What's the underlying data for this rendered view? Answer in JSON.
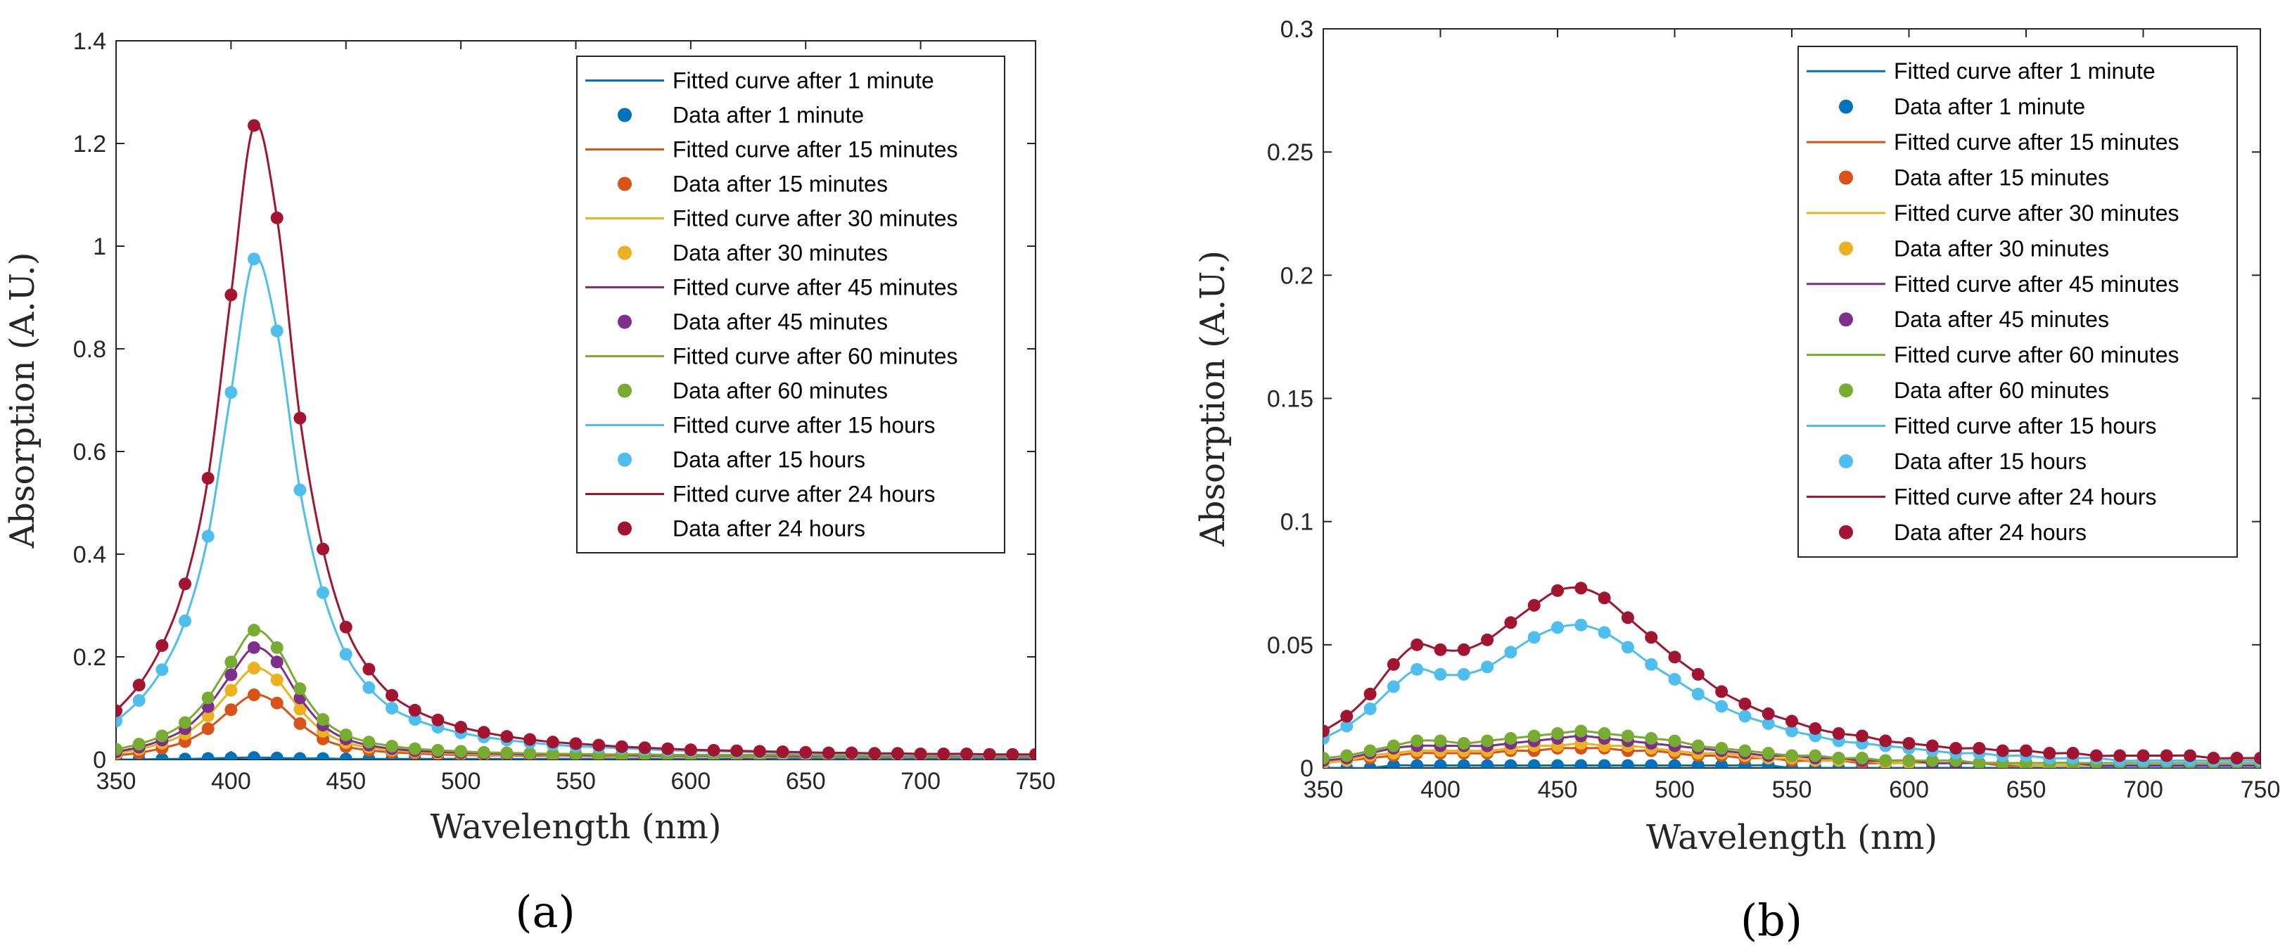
{
  "panels": [
    {
      "label": "(a)",
      "chart_data": {
        "type": "line",
        "xlabel": "Wavelength (nm)",
        "ylabel": "Absorption (A.U.)",
        "xlim": [
          350,
          750
        ],
        "ylim": [
          0,
          1.4
        ],
        "xticks": [
          350,
          400,
          450,
          500,
          550,
          600,
          650,
          700,
          750
        ],
        "yticks": [
          0,
          0.2,
          0.4,
          0.6,
          0.8,
          1,
          1.2,
          1.4
        ],
        "ytick_labels": [
          "0",
          "0.2",
          "0.4",
          "0.6",
          "0.8",
          "1",
          "1.2",
          "1.4"
        ],
        "legend_position": "top-right",
        "x": [
          350,
          360,
          370,
          380,
          390,
          400,
          410,
          420,
          430,
          440,
          450,
          460,
          470,
          480,
          490,
          500,
          510,
          520,
          530,
          540,
          550,
          560,
          570,
          580,
          590,
          600,
          610,
          620,
          630,
          640,
          650,
          660,
          670,
          680,
          690,
          700,
          710,
          720,
          730,
          740,
          750
        ],
        "series": [
          {
            "name": "after 1 minute",
            "color": "#0072BD",
            "values": [
              0.0,
              0.0,
              0.001,
              0.001,
              0.002,
              0.003,
              0.004,
              0.003,
              0.002,
              0.002,
              0.001,
              0.001,
              0.001,
              0.001,
              0.001,
              0.001,
              0.001,
              0.001,
              0.001,
              0.001,
              0.001,
              0.001,
              0.001,
              0.001,
              0.001,
              0.001,
              0.001,
              0.001,
              0.001,
              0.001,
              0.001,
              0.001,
              0.001,
              0.001,
              0.001,
              0.001,
              0.001,
              0.001,
              0.001,
              0.001,
              0.001
            ]
          },
          {
            "name": "after 15 minutes",
            "color": "#D95319",
            "values": [
              0.008,
              0.013,
              0.022,
              0.035,
              0.06,
              0.097,
              0.126,
              0.11,
              0.07,
              0.04,
              0.025,
              0.018,
              0.014,
              0.012,
              0.01,
              0.009,
              0.008,
              0.008,
              0.007,
              0.007,
              0.007,
              0.006,
              0.006,
              0.006,
              0.006,
              0.006,
              0.006,
              0.005,
              0.005,
              0.005,
              0.005,
              0.005,
              0.005,
              0.005,
              0.005,
              0.005,
              0.005,
              0.005,
              0.005,
              0.005,
              0.005
            ]
          },
          {
            "name": "after 30 minutes",
            "color": "#EDB120",
            "values": [
              0.012,
              0.02,
              0.032,
              0.05,
              0.085,
              0.135,
              0.178,
              0.155,
              0.098,
              0.055,
              0.033,
              0.024,
              0.018,
              0.015,
              0.013,
              0.011,
              0.01,
              0.009,
              0.009,
              0.008,
              0.008,
              0.008,
              0.007,
              0.007,
              0.007,
              0.007,
              0.007,
              0.006,
              0.006,
              0.006,
              0.006,
              0.006,
              0.006,
              0.006,
              0.006,
              0.006,
              0.006,
              0.006,
              0.006,
              0.006,
              0.006
            ]
          },
          {
            "name": "after 45 minutes",
            "color": "#7E2F8E",
            "values": [
              0.015,
              0.024,
              0.038,
              0.06,
              0.103,
              0.165,
              0.218,
              0.19,
              0.12,
              0.067,
              0.04,
              0.028,
              0.021,
              0.017,
              0.015,
              0.013,
              0.012,
              0.011,
              0.01,
              0.01,
              0.009,
              0.009,
              0.009,
              0.008,
              0.008,
              0.008,
              0.008,
              0.008,
              0.008,
              0.007,
              0.007,
              0.007,
              0.007,
              0.007,
              0.007,
              0.007,
              0.007,
              0.007,
              0.007,
              0.007,
              0.007
            ]
          },
          {
            "name": "after 60 minutes",
            "color": "#77AC30",
            "values": [
              0.02,
              0.03,
              0.046,
              0.072,
              0.12,
              0.19,
              0.252,
              0.218,
              0.138,
              0.078,
              0.048,
              0.034,
              0.026,
              0.021,
              0.018,
              0.016,
              0.014,
              0.013,
              0.012,
              0.011,
              0.011,
              0.01,
              0.01,
              0.01,
              0.009,
              0.009,
              0.009,
              0.009,
              0.009,
              0.009,
              0.009,
              0.008,
              0.008,
              0.008,
              0.008,
              0.008,
              0.008,
              0.008,
              0.008,
              0.008,
              0.008
            ]
          },
          {
            "name": "after 15 hours",
            "color": "#4DBEEE",
            "values": [
              0.075,
              0.115,
              0.175,
              0.27,
              0.435,
              0.715,
              0.975,
              0.835,
              0.525,
              0.325,
              0.205,
              0.14,
              0.1,
              0.078,
              0.063,
              0.052,
              0.044,
              0.038,
              0.033,
              0.029,
              0.026,
              0.024,
              0.022,
              0.02,
              0.018,
              0.017,
              0.016,
              0.015,
              0.014,
              0.013,
              0.012,
              0.012,
              0.011,
              0.011,
              0.01,
              0.01,
              0.01,
              0.009,
              0.009,
              0.009,
              0.009
            ]
          },
          {
            "name": "after 24 hours",
            "color": "#A2142F",
            "values": [
              0.095,
              0.145,
              0.222,
              0.342,
              0.548,
              0.905,
              1.235,
              1.055,
              0.665,
              0.41,
              0.258,
              0.176,
              0.125,
              0.096,
              0.077,
              0.063,
              0.053,
              0.045,
              0.039,
              0.034,
              0.031,
              0.028,
              0.025,
              0.023,
              0.021,
              0.019,
              0.018,
              0.017,
              0.016,
              0.015,
              0.014,
              0.013,
              0.013,
              0.012,
              0.012,
              0.011,
              0.011,
              0.011,
              0.01,
              0.01,
              0.01
            ]
          }
        ]
      }
    },
    {
      "label": "(b)",
      "chart_data": {
        "type": "line",
        "xlabel": "Wavelength (nm)",
        "ylabel": "Absorption (A.U.)",
        "xlim": [
          350,
          750
        ],
        "ylim": [
          0,
          0.3
        ],
        "xticks": [
          350,
          400,
          450,
          500,
          550,
          600,
          650,
          700,
          750
        ],
        "yticks": [
          0,
          0.05,
          0.1,
          0.15,
          0.2,
          0.25,
          0.3
        ],
        "ytick_labels": [
          "0",
          "0.05",
          "0.1",
          "0.15",
          "0.2",
          "0.25",
          "0.3"
        ],
        "legend_position": "top-right",
        "x": [
          350,
          360,
          370,
          380,
          390,
          400,
          410,
          420,
          430,
          440,
          450,
          460,
          470,
          480,
          490,
          500,
          510,
          520,
          530,
          540,
          550,
          560,
          570,
          580,
          590,
          600,
          610,
          620,
          630,
          640,
          650,
          660,
          670,
          680,
          690,
          700,
          710,
          720,
          730,
          740,
          750
        ],
        "series": [
          {
            "name": "after 1 minute",
            "color": "#0072BD",
            "values": [
              0.0,
              0.0,
              0.0,
              0.001,
              0.001,
              0.001,
              0.001,
              0.001,
              0.001,
              0.001,
              0.001,
              0.001,
              0.001,
              0.001,
              0.001,
              0.001,
              0.001,
              0.001,
              0.001,
              0.001,
              0.0,
              0.0,
              0.0,
              0.0,
              0.0,
              0.0,
              0.0,
              0.0,
              0.0,
              0.0,
              0.0,
              0.0,
              0.0,
              0.0,
              0.0,
              0.0,
              0.0,
              0.0,
              0.0,
              0.0,
              0.0
            ]
          },
          {
            "name": "after 15 minutes",
            "color": "#D95319",
            "values": [
              0.002,
              0.003,
              0.004,
              0.005,
              0.006,
              0.006,
              0.006,
              0.006,
              0.007,
              0.007,
              0.008,
              0.008,
              0.008,
              0.007,
              0.007,
              0.006,
              0.005,
              0.005,
              0.004,
              0.004,
              0.003,
              0.003,
              0.003,
              0.002,
              0.002,
              0.002,
              0.002,
              0.002,
              0.002,
              0.001,
              0.001,
              0.001,
              0.001,
              0.001,
              0.001,
              0.001,
              0.001,
              0.001,
              0.001,
              0.001,
              0.001
            ]
          },
          {
            "name": "after 30 minutes",
            "color": "#EDB120",
            "values": [
              0.002,
              0.003,
              0.005,
              0.006,
              0.007,
              0.007,
              0.007,
              0.007,
              0.008,
              0.009,
              0.009,
              0.01,
              0.009,
              0.009,
              0.008,
              0.007,
              0.006,
              0.006,
              0.005,
              0.004,
              0.004,
              0.003,
              0.003,
              0.003,
              0.002,
              0.002,
              0.002,
              0.002,
              0.002,
              0.002,
              0.001,
              0.001,
              0.001,
              0.001,
              0.001,
              0.001,
              0.001,
              0.001,
              0.001,
              0.001,
              0.001
            ]
          },
          {
            "name": "after 45 minutes",
            "color": "#7E2F8E",
            "values": [
              0.003,
              0.004,
              0.006,
              0.008,
              0.009,
              0.009,
              0.009,
              0.009,
              0.01,
              0.011,
              0.012,
              0.013,
              0.012,
              0.011,
              0.01,
              0.009,
              0.008,
              0.007,
              0.006,
              0.005,
              0.005,
              0.004,
              0.004,
              0.003,
              0.003,
              0.003,
              0.002,
              0.002,
              0.002,
              0.002,
              0.002,
              0.002,
              0.002,
              0.001,
              0.001,
              0.001,
              0.001,
              0.001,
              0.001,
              0.001,
              0.001
            ]
          },
          {
            "name": "after 60 minutes",
            "color": "#77AC30",
            "values": [
              0.004,
              0.005,
              0.007,
              0.009,
              0.011,
              0.011,
              0.01,
              0.011,
              0.012,
              0.013,
              0.014,
              0.015,
              0.014,
              0.013,
              0.012,
              0.011,
              0.009,
              0.008,
              0.007,
              0.006,
              0.005,
              0.005,
              0.004,
              0.004,
              0.003,
              0.003,
              0.003,
              0.003,
              0.002,
              0.002,
              0.002,
              0.002,
              0.002,
              0.002,
              0.002,
              0.002,
              0.002,
              0.002,
              0.002,
              0.002,
              0.002
            ]
          },
          {
            "name": "after 15 hours",
            "color": "#4DBEEE",
            "values": [
              0.012,
              0.017,
              0.024,
              0.033,
              0.04,
              0.038,
              0.038,
              0.041,
              0.047,
              0.053,
              0.057,
              0.058,
              0.055,
              0.049,
              0.042,
              0.036,
              0.03,
              0.025,
              0.021,
              0.018,
              0.015,
              0.013,
              0.011,
              0.01,
              0.009,
              0.008,
              0.007,
              0.006,
              0.006,
              0.005,
              0.005,
              0.004,
              0.004,
              0.004,
              0.003,
              0.003,
              0.003,
              0.003,
              0.003,
              0.003,
              0.003
            ]
          },
          {
            "name": "after 24 hours",
            "color": "#A2142F",
            "values": [
              0.015,
              0.021,
              0.03,
              0.042,
              0.05,
              0.048,
              0.048,
              0.052,
              0.059,
              0.066,
              0.072,
              0.073,
              0.069,
              0.061,
              0.053,
              0.045,
              0.038,
              0.031,
              0.026,
              0.022,
              0.019,
              0.016,
              0.014,
              0.013,
              0.011,
              0.01,
              0.009,
              0.008,
              0.008,
              0.007,
              0.007,
              0.006,
              0.006,
              0.005,
              0.005,
              0.005,
              0.005,
              0.005,
              0.004,
              0.004,
              0.004
            ]
          }
        ]
      }
    }
  ],
  "legend_prefix": {
    "fitted": "Fitted curve ",
    "data": "Data "
  }
}
